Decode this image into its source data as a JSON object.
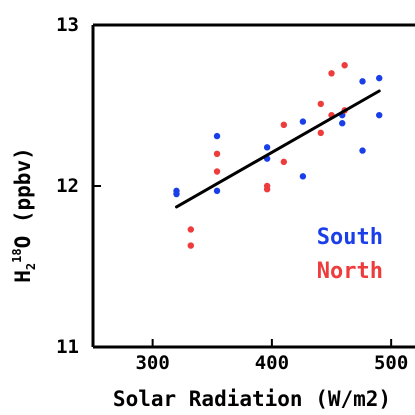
{
  "chart_data": {
    "type": "scatter",
    "title": "",
    "xlabel": "Solar Radiation (W/m2)",
    "ylabel": {
      "main": "H",
      "sub": "2",
      "sup": "18",
      "rest": "O (ppbv)"
    },
    "xlim": [
      250,
      520
    ],
    "ylim": [
      11,
      13
    ],
    "xticks": [
      300,
      400,
      500
    ],
    "yticks": [
      11,
      12,
      13
    ],
    "xtick_labels": [
      "300",
      "400",
      "500"
    ],
    "ytick_labels": [
      "11",
      "12",
      "13"
    ],
    "legend_placement": "inside-lower-right",
    "series": [
      {
        "name": "South",
        "color": "#1a3ee8",
        "points": [
          {
            "x": 320,
            "y": 11.97
          },
          {
            "x": 320,
            "y": 11.95
          },
          {
            "x": 354,
            "y": 12.31
          },
          {
            "x": 354,
            "y": 11.97
          },
          {
            "x": 396,
            "y": 12.24
          },
          {
            "x": 396,
            "y": 12.17
          },
          {
            "x": 426,
            "y": 12.4
          },
          {
            "x": 426,
            "y": 12.06
          },
          {
            "x": 459,
            "y": 12.44
          },
          {
            "x": 459,
            "y": 12.39
          },
          {
            "x": 476,
            "y": 12.65
          },
          {
            "x": 476,
            "y": 12.22
          },
          {
            "x": 490,
            "y": 12.67
          },
          {
            "x": 490,
            "y": 12.44
          }
        ]
      },
      {
        "name": "North",
        "color": "#ee3b3b",
        "points": [
          {
            "x": 332,
            "y": 11.73
          },
          {
            "x": 332,
            "y": 11.63
          },
          {
            "x": 354,
            "y": 12.2
          },
          {
            "x": 354,
            "y": 12.09
          },
          {
            "x": 396,
            "y": 12.0
          },
          {
            "x": 396,
            "y": 11.98
          },
          {
            "x": 410,
            "y": 12.38
          },
          {
            "x": 410,
            "y": 12.15
          },
          {
            "x": 441,
            "y": 12.51
          },
          {
            "x": 441,
            "y": 12.33
          },
          {
            "x": 450,
            "y": 12.7
          },
          {
            "x": 450,
            "y": 12.44
          },
          {
            "x": 461,
            "y": 12.75
          },
          {
            "x": 461,
            "y": 12.47
          }
        ]
      }
    ],
    "fit_line": {
      "color": "#000000",
      "x": [
        320,
        490
      ],
      "y": [
        11.87,
        12.59
      ]
    }
  }
}
